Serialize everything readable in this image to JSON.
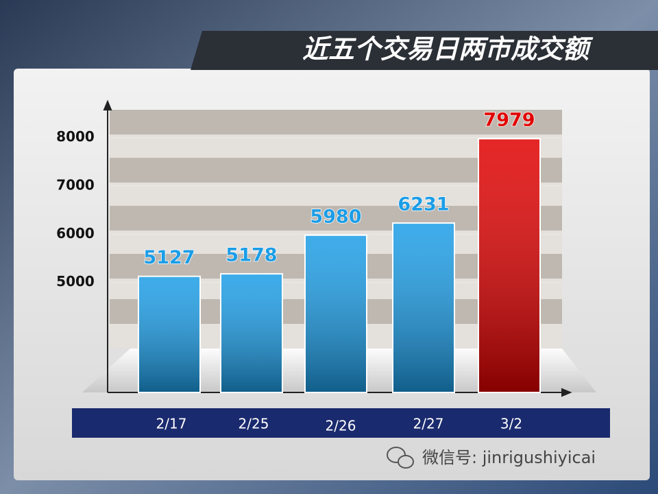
{
  "chart_data": {
    "type": "bar",
    "title": "近五个交易日两市成交额",
    "footer": "微信号: jinrigushiyicai",
    "categories": [
      "2/17",
      "2/25",
      "2/26",
      "2/27",
      "3/2"
    ],
    "values": [
      5127,
      5178,
      5980,
      6231,
      7979
    ],
    "colors": [
      "#1c9de6",
      "#1c9de6",
      "#1c9de6",
      "#1c9de6",
      "#e00000"
    ],
    "ylim": [
      2720,
      8650
    ],
    "yticks": [
      5000,
      6000,
      7000,
      8000
    ],
    "grid": true
  }
}
